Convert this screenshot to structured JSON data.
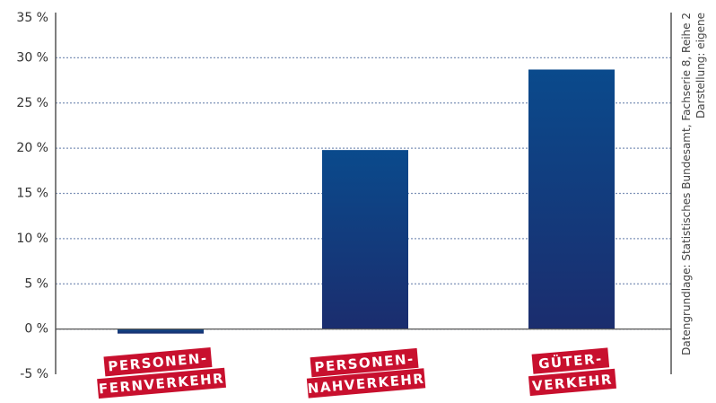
{
  "chart_data": {
    "type": "bar",
    "categories": [
      [
        "PERSONEN-",
        "FERNVERKEHR"
      ],
      [
        "PERSONEN-",
        "NAHVERKEHR"
      ],
      [
        "GÜTER-",
        "VERKEHR"
      ]
    ],
    "values": [
      -0.5,
      19.8,
      28.7
    ],
    "ylim": [
      -5,
      35
    ],
    "yticks": [
      "-5 %",
      "0 %",
      "5 %",
      "10 %",
      "15 %",
      "20 %",
      "25 %",
      "30 %",
      "35 %"
    ],
    "ytick_values": [
      -5,
      0,
      5,
      10,
      15,
      20,
      25,
      30,
      35
    ],
    "grid": true,
    "colors": {
      "bar_top": "#0a4a8c",
      "bar_bottom": "#1b2d6e",
      "label_bg": "#c8102e",
      "grid": "#7f93b8"
    },
    "source_lines": [
      "Datengrundlage: Statistisches Bundesamt, Fachserie 8, Reihe 2",
      "Darstellung: eigene"
    ]
  }
}
